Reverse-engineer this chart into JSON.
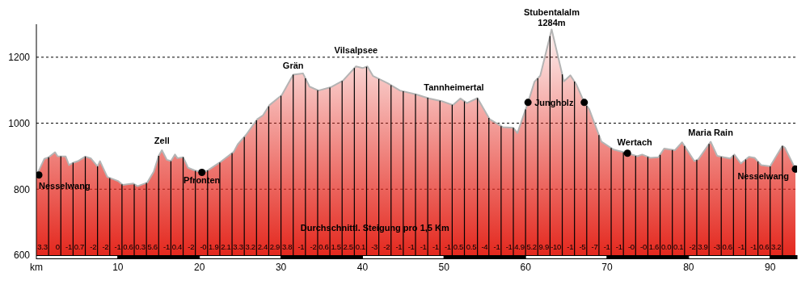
{
  "chart_data": {
    "type": "area",
    "xlim": [
      0,
      93.3
    ],
    "ylim": [
      600,
      1300
    ],
    "xticks": [
      {
        "value": 0,
        "label": "km"
      },
      10,
      20,
      30,
      40,
      50,
      60,
      70,
      80,
      90
    ],
    "yticks": [
      600,
      800,
      1000,
      1200
    ],
    "grid": "y",
    "series": [
      {
        "color": "#e4281e",
        "x": [
          0,
          0.98,
          1.47,
          2.29,
          2.6,
          3.6,
          4.0,
          4.6,
          5.1,
          6.0,
          6.7,
          7.5,
          7.8,
          8.7,
          10.0,
          10.6,
          11.9,
          12.4,
          13.6,
          14.4,
          15.0,
          15.4,
          16.0,
          16.5,
          17.0,
          17.3,
          18.0,
          18.6,
          19.4,
          20.3,
          20.9,
          22.5,
          24.2,
          24.7,
          25.7,
          27.1,
          27.8,
          28.6,
          30.1,
          31.5,
          32.7,
          33.5,
          34.6,
          36.1,
          37.6,
          39.2,
          40.0,
          40.6,
          41.3,
          43.1,
          44.6,
          46.6,
          48.2,
          49.7,
          51.1,
          52.0,
          52.8,
          54.1,
          55.6,
          57.2,
          58.5,
          59.0,
          60.3,
          61.1,
          61.8,
          63.2,
          64.7,
          65.5,
          66.2,
          67.2,
          67.8,
          69.3,
          70.8,
          72.5,
          73.7,
          74.3,
          75.3,
          76.3,
          77.0,
          78.3,
          79.2,
          80.7,
          81.2,
          82.7,
          83.5,
          84.3,
          85.1,
          85.6,
          86.4,
          87.4,
          88.1,
          88.9,
          90.0,
          91.5,
          91.8,
          93.1
        ],
        "values": [
          840,
          892,
          896,
          912,
          900,
          899,
          873,
          881,
          885,
          899,
          893,
          869,
          885,
          837,
          825,
          813,
          817,
          809,
          820,
          853,
          901,
          918,
          889,
          885,
          905,
          894,
          897,
          865,
          857,
          851,
          855,
          881,
          913,
          936,
          964,
          1012,
          1024,
          1055,
          1085,
          1147,
          1151,
          1111,
          1099,
          1109,
          1129,
          1172,
          1167,
          1172,
          1143,
          1121,
          1099,
          1087,
          1075,
          1067,
          1055,
          1075,
          1061,
          1076,
          1012,
          988,
          986,
          970,
          1063,
          1126,
          1144,
          1284,
          1127,
          1145,
          1119,
          1063,
          1043,
          944,
          920,
          909,
          900,
          905,
          895,
          897,
          923,
          918,
          942,
          885,
          891,
          944,
          901,
          897,
          893,
          905,
          878,
          898,
          895,
          873,
          869,
          931,
          926,
          861
        ]
      },
      {
        "type": "scatter",
        "color": "#000000",
        "marker": "circle",
        "x": [
          0.3,
          20.3,
          60.3,
          67.2,
          72.5,
          93.1
        ],
        "values": [
          843,
          851,
          1063,
          1063,
          909,
          861
        ]
      }
    ],
    "annotations": [
      {
        "text": "Nesselwang",
        "x": 0.3,
        "y": 843
      },
      {
        "text": "Zell",
        "x": 15.4,
        "y": 918
      },
      {
        "text": "Pfronten",
        "x": 20.3,
        "y": 851
      },
      {
        "text": "Grän",
        "x": 31.5,
        "y": 1147
      },
      {
        "text": "Vilsalpsee",
        "x": 39.2,
        "y": 1172
      },
      {
        "text": "Tannheimertal",
        "x": 52.0,
        "y": 1075
      },
      {
        "text": "Stubentalalm\n1284m",
        "x": 63.2,
        "y": 1284
      },
      {
        "text": "Jungholz",
        "x": 60.3,
        "y": 1063
      },
      {
        "text": "Wertach",
        "x": 72.5,
        "y": 909
      },
      {
        "text": "Maria Rain",
        "x": 82.7,
        "y": 944
      },
      {
        "text": "Nesselwang",
        "x": 93.1,
        "y": 861
      },
      "Durchschnittl. Steigung pro 1,5 Km",
      {
        "text": "3.3",
        "x": 1.5,
        "y": 897
      },
      {
        "text": "0",
        "x": 3,
        "y": 900
      },
      {
        "text": "-1",
        "x": 4.5,
        "y": 880
      },
      {
        "text": "0.7",
        "x": 6,
        "y": 899
      },
      {
        "text": "-2",
        "x": 7.5,
        "y": 869
      },
      {
        "text": "-2",
        "x": 9,
        "y": 834
      },
      {
        "text": "-1",
        "x": 10.5,
        "y": 815
      },
      {
        "text": "0.6",
        "x": 12,
        "y": 815
      },
      {
        "text": "0.3",
        "x": 13.5,
        "y": 819
      },
      {
        "text": "5.6",
        "x": 15,
        "y": 901
      },
      {
        "text": "-1",
        "x": 16.5,
        "y": 885
      },
      {
        "text": "0.4",
        "x": 18,
        "y": 897
      },
      {
        "text": "-2",
        "x": 19.5,
        "y": 856
      },
      {
        "text": "-0",
        "x": 21,
        "y": 857
      },
      {
        "text": "1.9",
        "x": 22.5,
        "y": 881
      },
      {
        "text": "2.1",
        "x": 24,
        "y": 909
      },
      {
        "text": "3.3",
        "x": 25.5,
        "y": 958
      },
      {
        "text": "3.2",
        "x": 27,
        "y": 1009
      },
      {
        "text": "2.4",
        "x": 28.5,
        "y": 1051
      },
      {
        "text": "2.9",
        "x": 30,
        "y": 1083
      },
      {
        "text": "3.8",
        "x": 31.5,
        "y": 1147
      },
      {
        "text": "-1",
        "x": 33,
        "y": 1136
      },
      {
        "text": "-2",
        "x": 34.5,
        "y": 1100
      },
      {
        "text": "0.6",
        "x": 36,
        "y": 1108
      },
      {
        "text": "1.5",
        "x": 37.5,
        "y": 1128
      },
      {
        "text": "2.5",
        "x": 39,
        "y": 1167
      },
      {
        "text": "0.1",
        "x": 40.5,
        "y": 1171
      },
      {
        "text": "-3",
        "x": 42,
        "y": 1134
      },
      {
        "text": "-2",
        "x": 43.5,
        "y": 1115
      },
      {
        "text": "-1",
        "x": 45,
        "y": 1097
      },
      {
        "text": "-1",
        "x": 46.5,
        "y": 1088
      },
      {
        "text": "-1",
        "x": 48,
        "y": 1077
      },
      {
        "text": "-1",
        "x": 49.5,
        "y": 1068
      },
      {
        "text": "-1",
        "x": 51,
        "y": 1056
      },
      {
        "text": "0.5",
        "x": 52.5,
        "y": 1066
      },
      {
        "text": "0.5",
        "x": 54.1,
        "y": 1076
      },
      {
        "text": "-4",
        "x": 55.5,
        "y": 1016
      },
      {
        "text": "-1",
        "x": 57,
        "y": 991
      },
      {
        "text": "-1",
        "x": 58.5,
        "y": 986
      },
      {
        "text": "4.9",
        "x": 60,
        "y": 1042
      },
      {
        "text": "5.2",
        "x": 61.5,
        "y": 1136
      },
      {
        "text": "9.9",
        "x": 63,
        "y": 1264
      },
      {
        "text": "-10",
        "x": 64.5,
        "y": 1148
      },
      {
        "text": "-1",
        "x": 66,
        "y": 1126
      },
      {
        "text": "-5",
        "x": 67.5,
        "y": 1053
      },
      {
        "text": "-7",
        "x": 69,
        "y": 964
      },
      {
        "text": "-1",
        "x": 70.5,
        "y": 925
      },
      {
        "text": "-1",
        "x": 72,
        "y": 912
      },
      {
        "text": "-0",
        "x": 73.5,
        "y": 901
      },
      {
        "text": "-0",
        "x": 75,
        "y": 898
      },
      {
        "text": "1.6",
        "x": 76.5,
        "y": 904
      },
      {
        "text": "0.0",
        "x": 78,
        "y": 919
      },
      {
        "text": "0.1",
        "x": 79.5,
        "y": 931
      },
      {
        "text": "-2",
        "x": 81,
        "y": 889
      },
      {
        "text": "3.9",
        "x": 82.5,
        "y": 937
      },
      {
        "text": "-3",
        "x": 84,
        "y": 898
      },
      {
        "text": "0.6",
        "x": 85.5,
        "y": 903
      },
      {
        "text": "-1",
        "x": 87,
        "y": 890
      },
      {
        "text": "-1",
        "x": 88.5,
        "y": 884
      },
      {
        "text": "0.6",
        "x": 90,
        "y": 869
      },
      {
        "text": "3.2",
        "x": 91.5,
        "y": 931
      }
    ]
  }
}
